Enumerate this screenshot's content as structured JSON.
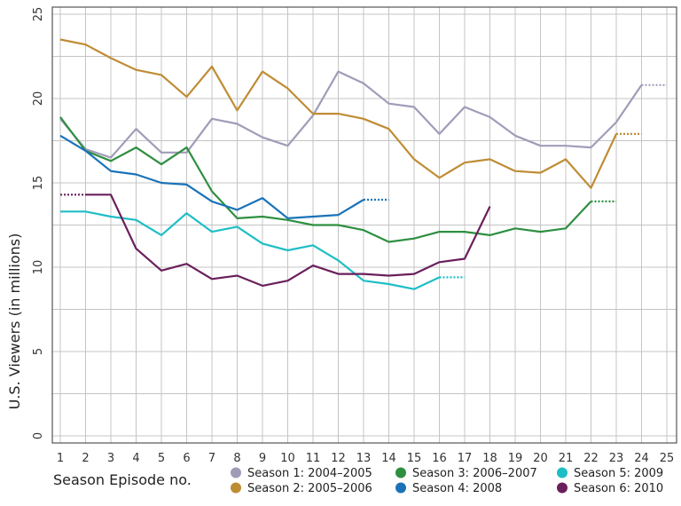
{
  "chart_data": {
    "type": "line",
    "title": "",
    "xlabel": "Season Episode no.",
    "ylabel": "U.S. Viewers (in millions)",
    "xlim": [
      1,
      25
    ],
    "ylim": [
      0,
      25
    ],
    "x_ticks": [
      1,
      2,
      3,
      4,
      5,
      6,
      7,
      8,
      9,
      10,
      11,
      12,
      13,
      14,
      15,
      16,
      17,
      18,
      19,
      20,
      21,
      22,
      23,
      24,
      25
    ],
    "y_ticks": [
      0,
      5,
      10,
      15,
      20,
      25
    ],
    "grid": true,
    "legend_position": "bottom",
    "series": [
      {
        "name": "Season 1: 2004–2005",
        "color": "#a09cb8",
        "values": [
          18.8,
          17.0,
          16.5,
          18.2,
          16.8,
          16.8,
          18.8,
          18.5,
          17.7,
          17.2,
          19.0,
          21.6,
          20.9,
          19.7,
          19.5,
          17.9,
          19.5,
          18.9,
          17.8,
          17.2,
          17.2,
          17.1,
          18.6,
          20.8
        ],
        "finale_x": 25
      },
      {
        "name": "Season 2: 2005–2006",
        "color": "#bf8c34",
        "values": [
          23.5,
          23.2,
          22.4,
          21.7,
          21.4,
          20.1,
          21.9,
          19.3,
          21.6,
          20.6,
          19.1,
          19.1,
          18.8,
          18.2,
          16.4,
          15.3,
          16.2,
          16.4,
          15.7,
          15.6,
          16.4,
          14.7,
          17.9
        ],
        "finale_x": 24
      },
      {
        "name": "Season 3: 2006–2007",
        "color": "#2e8f41",
        "values": [
          18.9,
          16.9,
          16.3,
          17.1,
          16.1,
          17.1,
          14.5,
          12.9,
          13.0,
          12.8,
          12.5,
          12.5,
          12.2,
          11.5,
          11.7,
          12.1,
          12.1,
          11.9,
          12.3,
          12.1,
          12.3,
          13.9
        ],
        "finale_x": 23
      },
      {
        "name": "Season 4: 2008",
        "color": "#1a73b8",
        "values": [
          17.8,
          16.9,
          15.7,
          15.5,
          15.0,
          14.9,
          13.9,
          13.4,
          14.1,
          12.9,
          13.0,
          13.1,
          14.0
        ],
        "finale_x": 14
      },
      {
        "name": "Season 5: 2009",
        "color": "#1fbec6",
        "values": [
          13.3,
          13.3,
          13.0,
          12.8,
          11.9,
          13.2,
          12.1,
          12.4,
          11.4,
          11.0,
          11.3,
          10.4,
          9.2,
          9.0,
          8.7,
          9.4
        ],
        "finale_x": 17
      },
      {
        "name": "Season 6: 2010",
        "color": "#6a1f5c",
        "values": [
          14.3,
          14.3,
          11.1,
          9.8,
          10.2,
          9.3,
          9.5,
          8.9,
          9.2,
          10.1,
          9.6,
          9.6,
          9.5,
          9.6,
          10.3,
          10.5,
          13.6
        ],
        "start_x": 2,
        "start_value": 14.3,
        "finale_x": 18
      }
    ]
  }
}
